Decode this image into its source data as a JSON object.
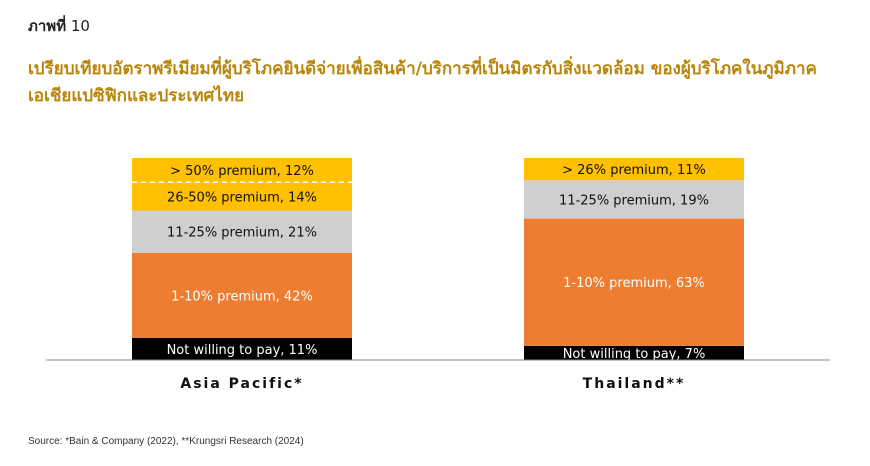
{
  "figure_label": {
    "prefix": "ภาพที่",
    "number": "10"
  },
  "title": "เปรียบเทียบอัตราพรีเมียมที่ผู้บริโภคยินดีจ่ายเพื่อสินค้า/บริการที่เป็นมิตรกับสิ่งแวดล้อม ของผู้บริโภคในภูมิภาคเอเชียแปซิฟิกและประเทศไทย",
  "source": "Source: *Bain & Company (2022), **Krungsri Research (2024)",
  "chart_data": {
    "type": "bar",
    "stacked": true,
    "categories": [
      "Asia Pacific*",
      "Thailand**"
    ],
    "ylim": [
      0,
      100
    ],
    "stacks": [
      {
        "category": "Asia Pacific*",
        "segments": [
          {
            "label": "Not willing to pay, 11%",
            "value": 11,
            "color": "#000000",
            "text_color": "#ffffff"
          },
          {
            "label": "1-10% premium, 42%",
            "value": 42,
            "color": "#ed7d31",
            "text_color": "#ffffff"
          },
          {
            "label": "11-25% premium, 21%",
            "value": 21,
            "color": "#d0cece",
            "text_color": "#111111"
          },
          {
            "label": "26-50% premium, 14%",
            "value": 14,
            "color": "#ffc000",
            "text_color": "#111111"
          },
          {
            "label": "> 50% premium, 12%",
            "value": 12,
            "color": "#ffc000",
            "text_color": "#111111"
          }
        ]
      },
      {
        "category": "Thailand**",
        "segments": [
          {
            "label": "Not willing to pay, 7%",
            "value": 7,
            "color": "#000000",
            "text_color": "#ffffff"
          },
          {
            "label": "1-10% premium, 63%",
            "value": 63,
            "color": "#ed7d31",
            "text_color": "#ffffff"
          },
          {
            "label": "11-25% premium, 19%",
            "value": 19,
            "color": "#d0cece",
            "text_color": "#111111"
          },
          {
            "label": "> 26% premium, 11%",
            "value": 11,
            "color": "#ffc000",
            "text_color": "#111111"
          }
        ]
      }
    ]
  }
}
